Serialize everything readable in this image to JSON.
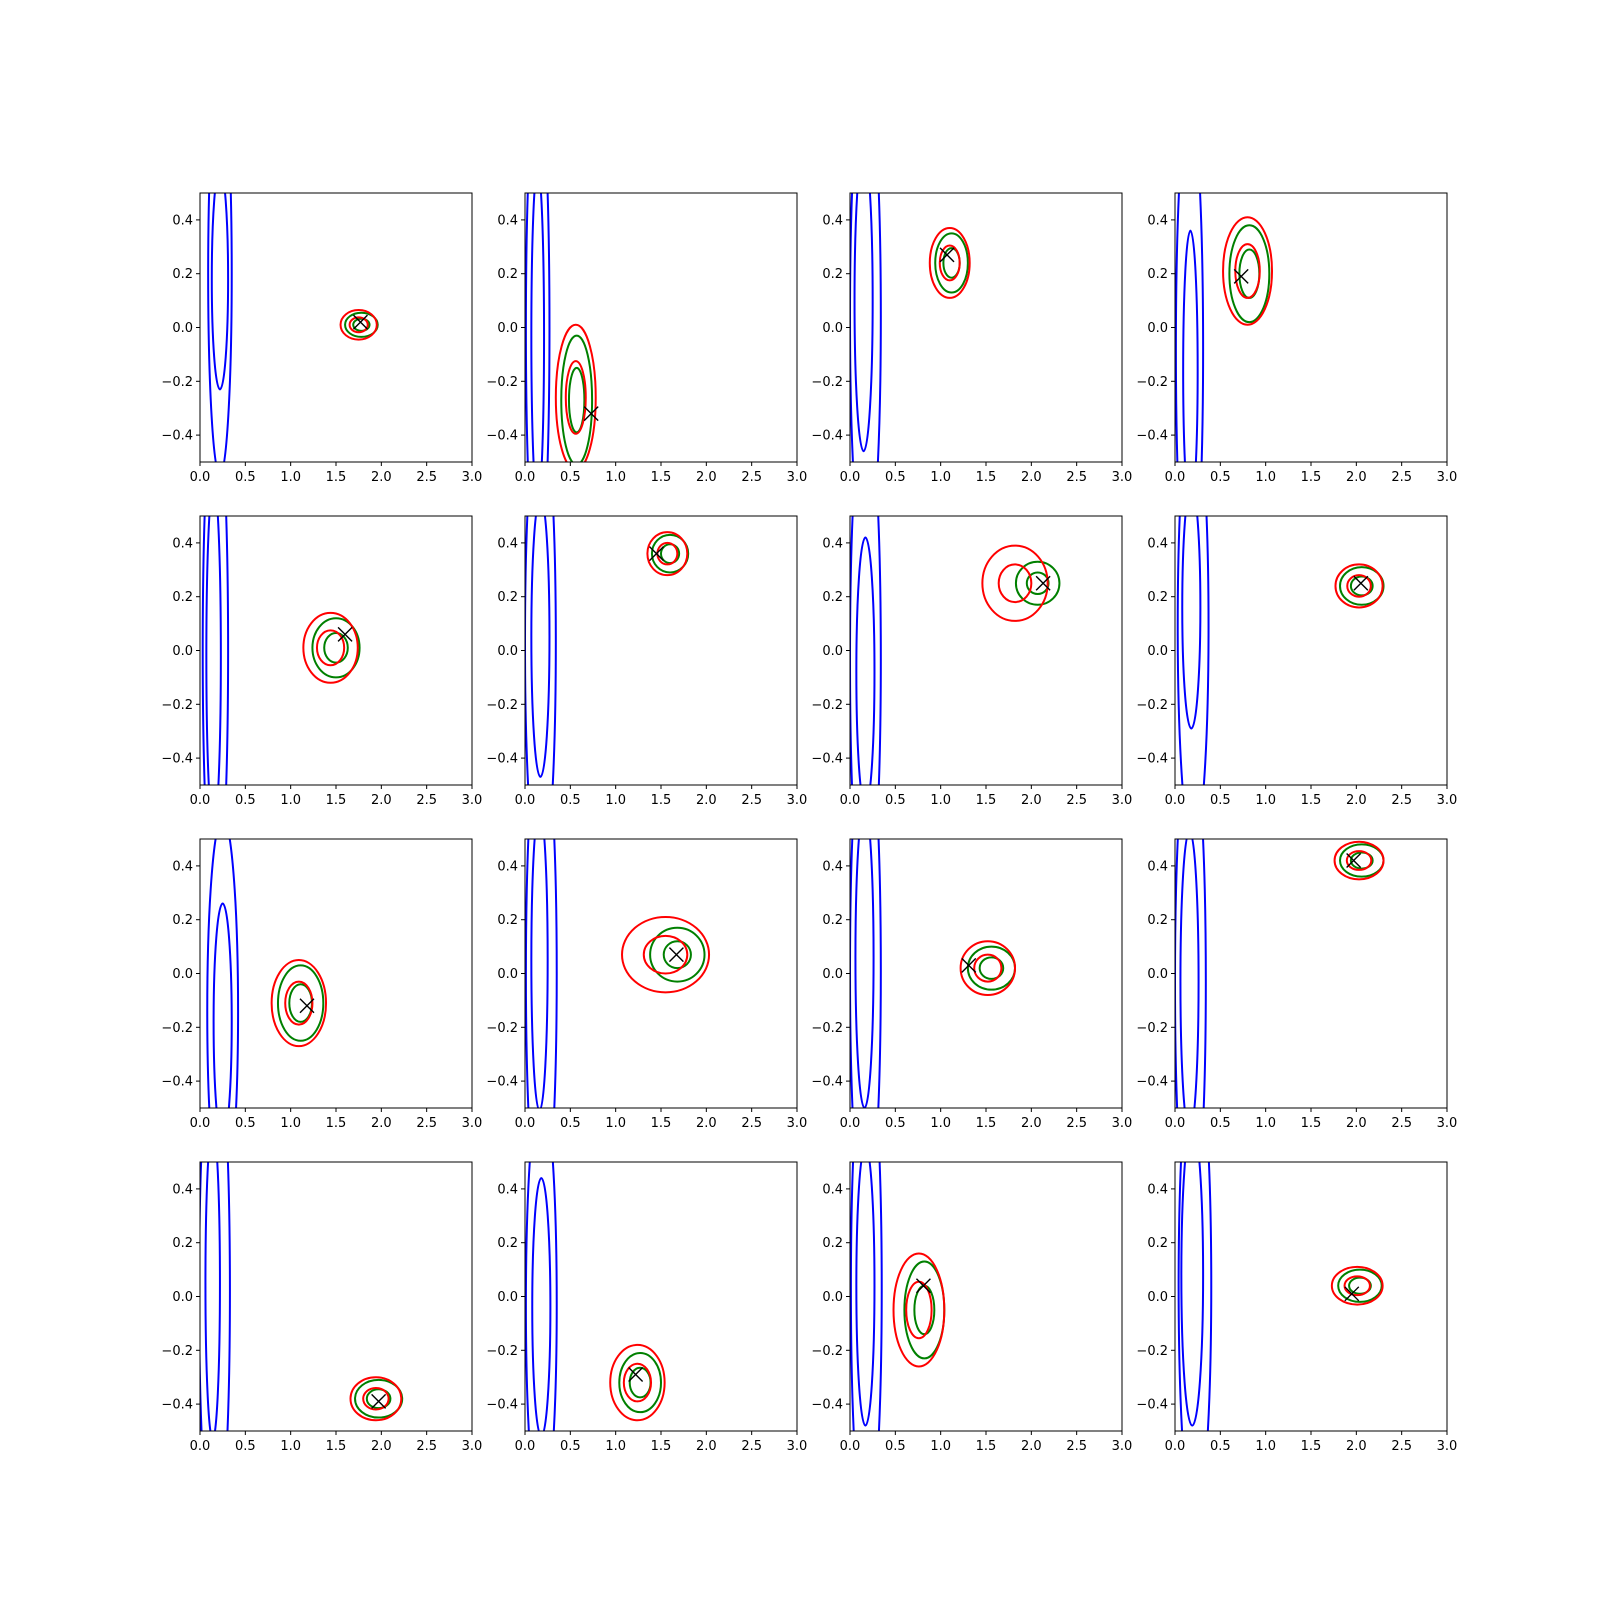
{
  "chart_data": {
    "type": "contour-grid",
    "rows": 4,
    "cols": 4,
    "xlim": [
      0,
      3
    ],
    "ylim": [
      -0.5,
      0.5
    ],
    "xticks": [
      0.0,
      0.5,
      1.0,
      1.5,
      2.0,
      2.5,
      3.0
    ],
    "yticks": [
      -0.4,
      -0.2,
      0.0,
      0.2,
      0.4
    ],
    "xtick_labels": [
      "0.0",
      "0.5",
      "1.0",
      "1.5",
      "2.0",
      "2.5",
      "3.0"
    ],
    "ytick_labels": [
      "−0.4",
      "−0.2",
      "0.0",
      "0.2",
      "0.4"
    ],
    "colors": {
      "blue": "#0000ff",
      "green": "#008000",
      "red": "#ff0000",
      "marker": "#000000"
    },
    "panels": [
      {
        "blue": [
          [
            0.22,
            0.2,
            0.13,
            0.75
          ],
          [
            0.22,
            0.18,
            0.09,
            0.41
          ]
        ],
        "green": [
          0.18,
          0.045,
          [
            1.78,
            0.01
          ]
        ],
        "red": [
          0.2,
          0.055,
          [
            1.75,
            0.01
          ]
        ],
        "cross": [
          1.77,
          0.02
        ]
      },
      {
        "blue": [
          [
            0.14,
            0.0,
            0.13,
            0.92
          ],
          [
            0.14,
            -0.03,
            0.07,
            0.62
          ]
        ],
        "green": [
          0.17,
          0.24,
          [
            0.57,
            -0.27
          ]
        ],
        "red": [
          0.22,
          0.27,
          [
            0.56,
            -0.26
          ]
        ],
        "cross": [
          0.73,
          -0.32
        ]
      },
      {
        "blue": [
          [
            0.17,
            0.04,
            0.17,
            0.92
          ],
          [
            0.15,
            0.1,
            0.1,
            0.56
          ]
        ],
        "green": [
          0.18,
          0.11,
          [
            1.12,
            0.24
          ]
        ],
        "red": [
          0.22,
          0.13,
          [
            1.1,
            0.24
          ]
        ],
        "cross": [
          1.07,
          0.27
        ]
      },
      {
        "blue": [
          [
            0.16,
            -0.08,
            0.15,
            0.92
          ],
          [
            0.17,
            -0.16,
            0.08,
            0.52
          ]
        ],
        "green": [
          0.22,
          0.18,
          [
            0.82,
            0.2
          ]
        ],
        "red": [
          0.27,
          0.2,
          [
            0.8,
            0.21
          ]
        ],
        "cross": [
          0.73,
          0.19
        ]
      },
      {
        "blue": [
          [
            0.17,
            0.0,
            0.14,
            0.94
          ],
          [
            0.15,
            -0.02,
            0.08,
            0.64
          ]
        ],
        "green": [
          0.26,
          0.11,
          [
            1.5,
            0.01
          ]
        ],
        "red": [
          0.3,
          0.13,
          [
            1.44,
            0.01
          ]
        ],
        "cross": [
          1.6,
          0.06
        ]
      },
      {
        "blue": [
          [
            0.17,
            0.03,
            0.17,
            0.88
          ],
          [
            0.17,
            0.05,
            0.1,
            0.52
          ]
        ],
        "green": [
          0.2,
          0.07,
          [
            1.6,
            0.36
          ]
        ],
        "red": [
          0.22,
          0.08,
          [
            1.57,
            0.36
          ]
        ],
        "cross": [
          1.45,
          0.36
        ]
      },
      {
        "blue": [
          [
            0.17,
            -0.03,
            0.17,
            0.95
          ],
          [
            0.17,
            -0.08,
            0.1,
            0.5
          ]
        ],
        "green": [
          0.24,
          0.08,
          [
            2.07,
            0.25
          ]
        ],
        "red": [
          0.36,
          0.14,
          [
            1.82,
            0.25
          ]
        ],
        "cross": [
          2.13,
          0.25
        ]
      },
      {
        "blue": [
          [
            0.2,
            0.09,
            0.17,
            0.82
          ],
          [
            0.18,
            0.16,
            0.1,
            0.45
          ]
        ],
        "green": [
          0.24,
          0.07,
          [
            2.06,
            0.24
          ]
        ],
        "red": [
          0.26,
          0.08,
          [
            2.03,
            0.24
          ]
        ],
        "cross": [
          2.05,
          0.25
        ]
      },
      {
        "blue": [
          [
            0.25,
            -0.14,
            0.17,
            0.72
          ],
          [
            0.25,
            -0.18,
            0.1,
            0.44
          ]
        ],
        "green": [
          0.25,
          0.14,
          [
            1.11,
            -0.11
          ]
        ],
        "red": [
          0.3,
          0.16,
          [
            1.09,
            -0.11
          ]
        ],
        "cross": [
          1.18,
          -0.12
        ]
      },
      {
        "blue": [
          [
            0.18,
            0.0,
            0.17,
            0.92
          ],
          [
            0.16,
            0.05,
            0.09,
            0.56
          ]
        ],
        "green": [
          0.3,
          0.1,
          [
            1.68,
            0.07
          ]
        ],
        "red": [
          0.48,
          0.14,
          [
            1.55,
            0.07
          ]
        ],
        "cross": [
          1.67,
          0.07
        ]
      },
      {
        "blue": [
          [
            0.17,
            0.01,
            0.17,
            0.93
          ],
          [
            0.16,
            0.06,
            0.1,
            0.56
          ]
        ],
        "green": [
          0.26,
          0.08,
          [
            1.56,
            0.02
          ]
        ],
        "red": [
          0.3,
          0.1,
          [
            1.52,
            0.02
          ]
        ],
        "cross": [
          1.31,
          0.03
        ]
      },
      {
        "blue": [
          [
            0.17,
            -0.03,
            0.17,
            0.92
          ],
          [
            0.16,
            -0.03,
            0.1,
            0.56
          ]
        ],
        "green": [
          0.24,
          0.06,
          [
            2.06,
            0.42
          ]
        ],
        "red": [
          0.27,
          0.07,
          [
            2.03,
            0.42
          ]
        ],
        "cross": [
          1.97,
          0.42
        ]
      },
      {
        "blue": [
          [
            0.16,
            0.02,
            0.17,
            0.96
          ],
          [
            0.14,
            0.05,
            0.08,
            0.58
          ]
        ],
        "green": [
          0.26,
          0.07,
          [
            1.97,
            -0.38
          ]
        ],
        "red": [
          0.28,
          0.08,
          [
            1.94,
            -0.38
          ]
        ],
        "cross": [
          1.97,
          -0.39
        ]
      },
      {
        "blue": [
          [
            0.18,
            -0.03,
            0.17,
            0.8
          ],
          [
            0.18,
            -0.04,
            0.1,
            0.48
          ]
        ],
        "green": [
          0.23,
          0.11,
          [
            1.27,
            -0.32
          ]
        ],
        "red": [
          0.3,
          0.14,
          [
            1.24,
            -0.32
          ]
        ],
        "cross": [
          1.22,
          -0.29
        ]
      },
      {
        "blue": [
          [
            0.18,
            0.03,
            0.17,
            0.92
          ],
          [
            0.17,
            0.04,
            0.1,
            0.52
          ]
        ],
        "green": [
          0.22,
          0.18,
          [
            0.82,
            -0.05
          ]
        ],
        "red": [
          0.28,
          0.21,
          [
            0.76,
            -0.05
          ]
        ],
        "cross": [
          0.81,
          0.04
        ]
      },
      {
        "blue": [
          [
            0.22,
            0.04,
            0.18,
            0.88
          ],
          [
            0.19,
            0.08,
            0.12,
            0.56
          ]
        ],
        "green": [
          0.24,
          0.06,
          [
            2.04,
            0.04
          ]
        ],
        "red": [
          0.28,
          0.07,
          [
            2.01,
            0.04
          ]
        ],
        "cross": [
          1.95,
          0.01
        ]
      }
    ]
  }
}
